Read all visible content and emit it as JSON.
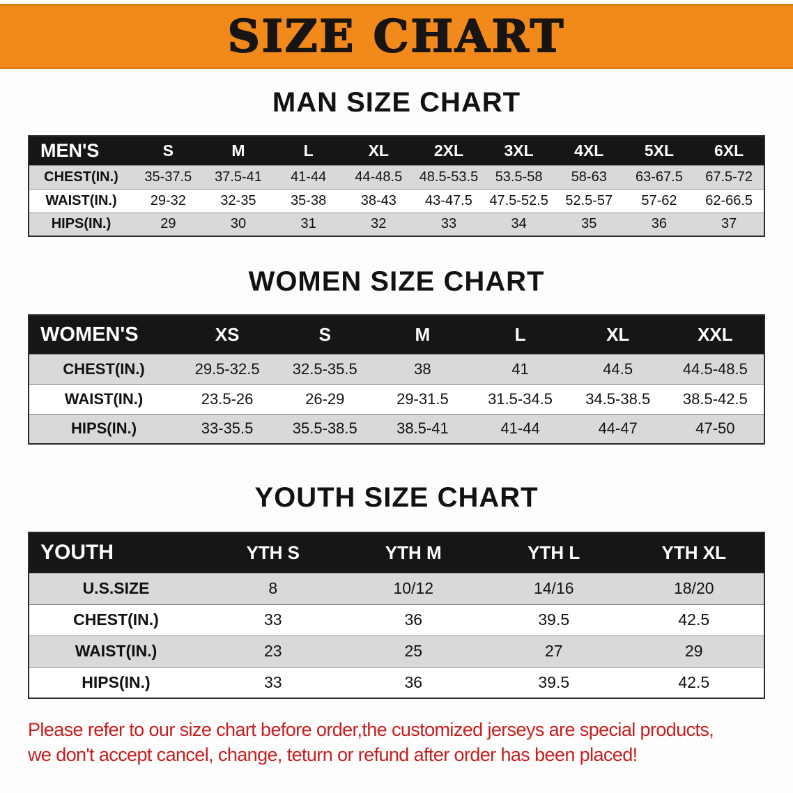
{
  "banner": {
    "title": "SIZE CHART",
    "bg": "#f28a1b"
  },
  "colors": {
    "banner_bg": "#f28a1b",
    "table_header_bg": "#161616",
    "row_alt_bg": "#d9d9d9",
    "footer_text": "#c51f1f"
  },
  "men": {
    "heading": "MAN SIZE CHART",
    "label": "MEN'S",
    "columns": [
      "S",
      "M",
      "L",
      "XL",
      "2XL",
      "3XL",
      "4XL",
      "5XL",
      "6XL"
    ],
    "rows": [
      {
        "label": "CHEST(IN.)",
        "values": [
          "35-37.5",
          "37.5-41",
          "41-44",
          "44-48.5",
          "48.5-53.5",
          "53.5-58",
          "58-63",
          "63-67.5",
          "67.5-72"
        ]
      },
      {
        "label": "WAIST(IN.)",
        "values": [
          "29-32",
          "32-35",
          "35-38",
          "38-43",
          "43-47.5",
          "47.5-52.5",
          "52.5-57",
          "57-62",
          "62-66.5"
        ]
      },
      {
        "label": "HIPS(IN.)",
        "values": [
          "29",
          "30",
          "31",
          "32",
          "33",
          "34",
          "35",
          "36",
          "37"
        ]
      }
    ]
  },
  "women": {
    "heading": "WOMEN SIZE CHART",
    "label": "WOMEN'S",
    "columns": [
      "XS",
      "S",
      "M",
      "L",
      "XL",
      "XXL"
    ],
    "rows": [
      {
        "label": "CHEST(IN.)",
        "values": [
          "29.5-32.5",
          "32.5-35.5",
          "38",
          "41",
          "44.5",
          "44.5-48.5"
        ]
      },
      {
        "label": "WAIST(IN.)",
        "values": [
          "23.5-26",
          "26-29",
          "29-31.5",
          "31.5-34.5",
          "34.5-38.5",
          "38.5-42.5"
        ]
      },
      {
        "label": "HIPS(IN.)",
        "values": [
          "33-35.5",
          "35.5-38.5",
          "38.5-41",
          "41-44",
          "44-47",
          "47-50"
        ]
      }
    ]
  },
  "youth": {
    "heading": "YOUTH SIZE CHART",
    "label": "YOUTH",
    "columns": [
      "YTH S",
      "YTH M",
      "YTH L",
      "YTH XL"
    ],
    "rows": [
      {
        "label": "U.S.SIZE",
        "values": [
          "8",
          "10/12",
          "14/16",
          "18/20"
        ]
      },
      {
        "label": "CHEST(IN.)",
        "values": [
          "33",
          "36",
          "39.5",
          "42.5"
        ]
      },
      {
        "label": "WAIST(IN.)",
        "values": [
          "23",
          "25",
          "27",
          "29"
        ]
      },
      {
        "label": "HIPS(IN.)",
        "values": [
          "33",
          "36",
          "39.5",
          "42.5"
        ]
      }
    ]
  },
  "footer": {
    "line1": "Please refer to our size chart before order,the customized jerseys are special products,",
    "line2": "we don't accept cancel, change, teturn or refund after order has been placed!"
  }
}
